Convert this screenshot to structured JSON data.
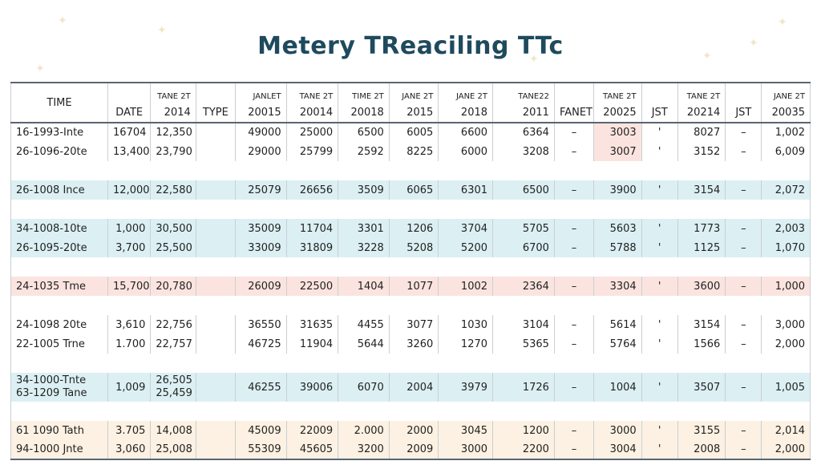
{
  "title": "Metery TReaciling TTc",
  "headers": [
    {
      "top": "",
      "bot": "TIME"
    },
    {
      "top": "",
      "bot": "DATE"
    },
    {
      "top": "TANE 2T",
      "bot": "2014"
    },
    {
      "top": "",
      "bot": "TYPE"
    },
    {
      "top": "JANLET",
      "bot": "20015"
    },
    {
      "top": "TANE 2T",
      "bot": "20014"
    },
    {
      "top": "TIME 2T",
      "bot": "20018"
    },
    {
      "top": "JANE 2T",
      "bot": "2015"
    },
    {
      "top": "JANE 2T",
      "bot": "2018"
    },
    {
      "top": "TANE22",
      "bot": "2011"
    },
    {
      "top": "",
      "bot": "FANET"
    },
    {
      "top": "TANE 2T",
      "bot": "20025"
    },
    {
      "top": "",
      "bot": "JST"
    },
    {
      "top": "TANE 2T",
      "bot": "20214"
    },
    {
      "top": "",
      "bot": "JST"
    },
    {
      "top": "JANE 2T",
      "bot": "20035"
    }
  ],
  "groups": [
    {
      "bg": "white",
      "rows": [
        [
          "16-1993-Inte",
          "16704",
          "12,350",
          "",
          "49000",
          "25000",
          "6500",
          "6005",
          "6600",
          "6364",
          "–",
          "3003",
          "'",
          "8027",
          "–",
          "1,002"
        ],
        [
          "26-1096-20te",
          "13,400",
          "23,790",
          "",
          "29000",
          "25799",
          "2592",
          "8225",
          "6000",
          "3208",
          "–",
          "3007",
          "'",
          "3152",
          "–",
          "6,009"
        ]
      ]
    },
    {
      "bg": "blue",
      "rows": [
        [
          "26-1008 Ince",
          "12,000",
          "22,580",
          "",
          "25079",
          "26656",
          "3509",
          "6065",
          "6301",
          "6500",
          "–",
          "3900",
          "'",
          "3154",
          "–",
          "2,072"
        ]
      ]
    },
    {
      "bg": "blue",
      "rows": [
        [
          "34-1008-10te",
          "1,000",
          "30,500",
          "",
          "35009",
          "11704",
          "3301",
          "1206",
          "3704",
          "5705",
          "–",
          "5603",
          "'",
          "1773",
          "–",
          "2,003"
        ],
        [
          "26-1095-20te",
          "3,700",
          "25,500",
          "",
          "33009",
          "31809",
          "3228",
          "5208",
          "5200",
          "6700",
          "–",
          "5788",
          "'",
          "1125",
          "–",
          "1,070"
        ]
      ]
    },
    {
      "bg": "pink",
      "rows": [
        [
          "24-1035 Tme",
          "15,700",
          "20,780",
          "",
          "26009",
          "22500",
          "1404",
          "1077",
          "1002",
          "2364",
          "–",
          "3304",
          "'",
          "3600",
          "–",
          "1,000"
        ]
      ]
    },
    {
      "bg": "white",
      "rows": [
        [
          "24-1098 20te",
          "3,610",
          "22,756",
          "",
          "36550",
          "31635",
          "4455",
          "3077",
          "1030",
          "3104",
          "–",
          "5614",
          "'",
          "3154",
          "–",
          "3,000"
        ],
        [
          "22-1005 Trne",
          "1.700",
          "22,757",
          "",
          "46725",
          "11904",
          "5644",
          "3260",
          "1270",
          "5365",
          "–",
          "5764",
          "'",
          "1566",
          "–",
          "2,000"
        ]
      ]
    },
    {
      "bg": "blue",
      "rows": [
        [
          "34-1000-Tnte|63-1209 Tane",
          "1,009",
          "26,505|25,459",
          "",
          "46255",
          "39006",
          "6070",
          "2004",
          "3979",
          "1726",
          "–",
          "1004",
          "'",
          "3507",
          "–",
          "1,005"
        ]
      ]
    },
    {
      "bg": "cream",
      "rows": [
        [
          "61 1090 Tath",
          "3.705",
          "14,008",
          "",
          "45009",
          "22009",
          "2.000",
          "2000",
          "3045",
          "1200",
          "–",
          "3000",
          "'",
          "3155",
          "–",
          "2,014"
        ],
        [
          "94-1000 Jnte",
          "3,060",
          "25,008",
          "",
          "55309",
          "45605",
          "3200",
          "2009",
          "3000",
          "2200",
          "–",
          "3004",
          "'",
          "2008",
          "–",
          "2,000"
        ]
      ]
    }
  ],
  "colors": {
    "title": "#1f4a5e",
    "blue_band": "#dcf0f3",
    "pink_band": "#fbe4df",
    "cream_band": "#fcf1e2"
  }
}
